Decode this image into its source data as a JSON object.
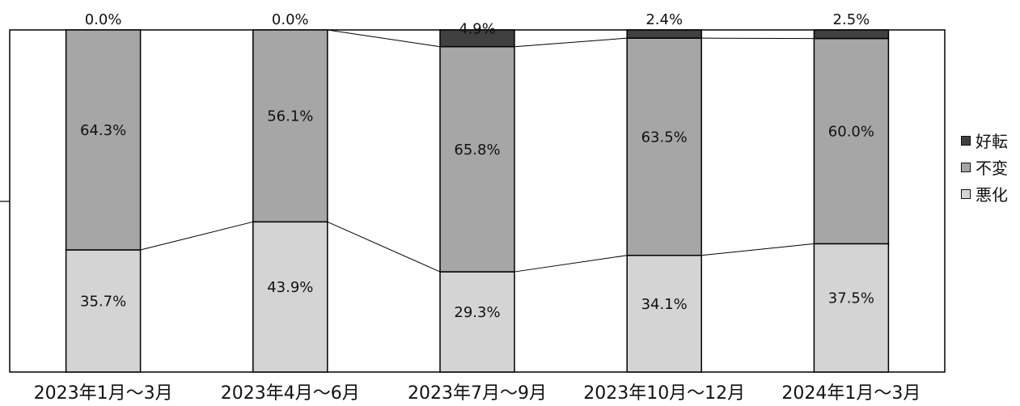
{
  "chart_data": {
    "type": "bar",
    "stacked": true,
    "percent_scale": true,
    "categories": [
      "2023年1月～3月",
      "2023年4月～6月",
      "2023年7月～9月",
      "2023年10月～12月",
      "2024年1月～3月"
    ],
    "series": [
      {
        "name": "悪化",
        "values": [
          35.7,
          43.9,
          29.3,
          34.1,
          37.5
        ],
        "labels": [
          "35.7%",
          "43.9%",
          "29.3%",
          "34.1%",
          "37.5%"
        ],
        "color": "#d4d4d4"
      },
      {
        "name": "不変",
        "values": [
          64.3,
          56.1,
          65.8,
          63.5,
          60.0
        ],
        "labels": [
          "64.3%",
          "56.1%",
          "65.8%",
          "63.5%",
          "60.0%"
        ],
        "color": "#a6a6a6"
      },
      {
        "name": "好転",
        "values": [
          0.0,
          0.0,
          4.9,
          2.4,
          2.5
        ],
        "labels": [
          "0.0%",
          "0.0%",
          "4.9%",
          "2.4%",
          "2.5%"
        ],
        "color": "#404040"
      }
    ],
    "ylim": [
      0,
      100
    ],
    "grid": false,
    "series_connector_lines": true,
    "legend_position": "right",
    "legend_order": [
      "好転",
      "不変",
      "悪化"
    ]
  }
}
